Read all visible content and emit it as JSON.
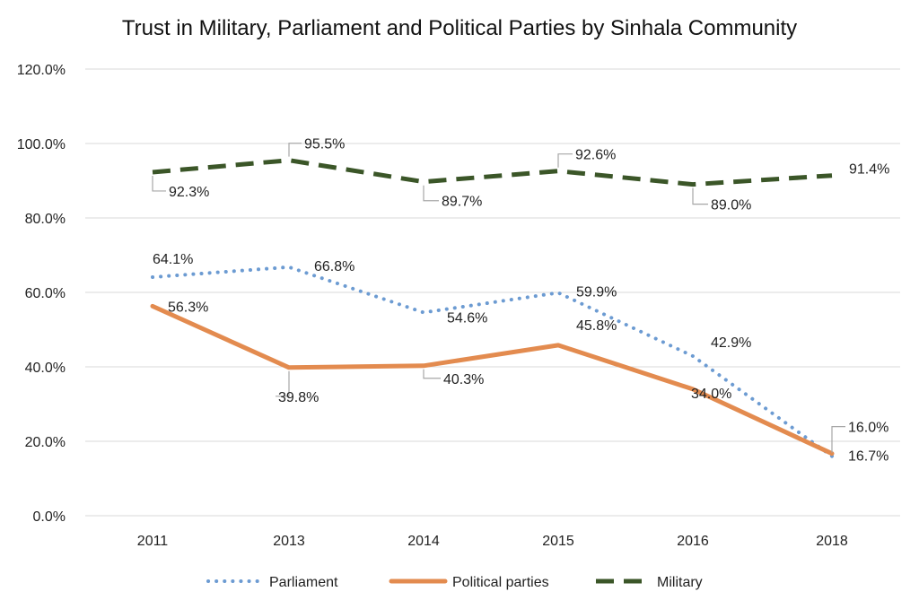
{
  "chart_data": {
    "type": "line",
    "title": "Trust  in Military, Parliament and Political Parties by Sinhala Community",
    "categories": [
      "2011",
      "2013",
      "2014",
      "2015",
      "2016",
      "2018"
    ],
    "ylim": [
      0,
      120
    ],
    "yticks": [
      "0.0%",
      "20.0%",
      "40.0%",
      "60.0%",
      "80.0%",
      "100.0%",
      "120.0%"
    ],
    "grid": true,
    "legend_position": "bottom",
    "series": [
      {
        "name": "Parliament",
        "values": [
          64.1,
          66.8,
          54.6,
          59.9,
          42.9,
          16.0
        ],
        "labels": [
          "64.1%",
          "66.8%",
          "54.6%",
          "59.9%",
          "42.9%",
          "16.0%"
        ],
        "color": "#6C9BD2",
        "style": "dotted"
      },
      {
        "name": "Political parties",
        "values": [
          56.3,
          39.8,
          40.3,
          45.8,
          34.0,
          16.7
        ],
        "labels": [
          "56.3%",
          "39.8%",
          "40.3%",
          "45.8%",
          "34.0%",
          "16.7%"
        ],
        "color": "#E38B4F",
        "style": "solid"
      },
      {
        "name": "Military",
        "values": [
          92.3,
          95.5,
          89.7,
          92.6,
          89.0,
          91.4
        ],
        "labels": [
          "92.3%",
          "95.5%",
          "89.7%",
          "92.6%",
          "89.0%",
          "91.4%"
        ],
        "color": "#3B5628",
        "style": "dashed"
      }
    ]
  }
}
